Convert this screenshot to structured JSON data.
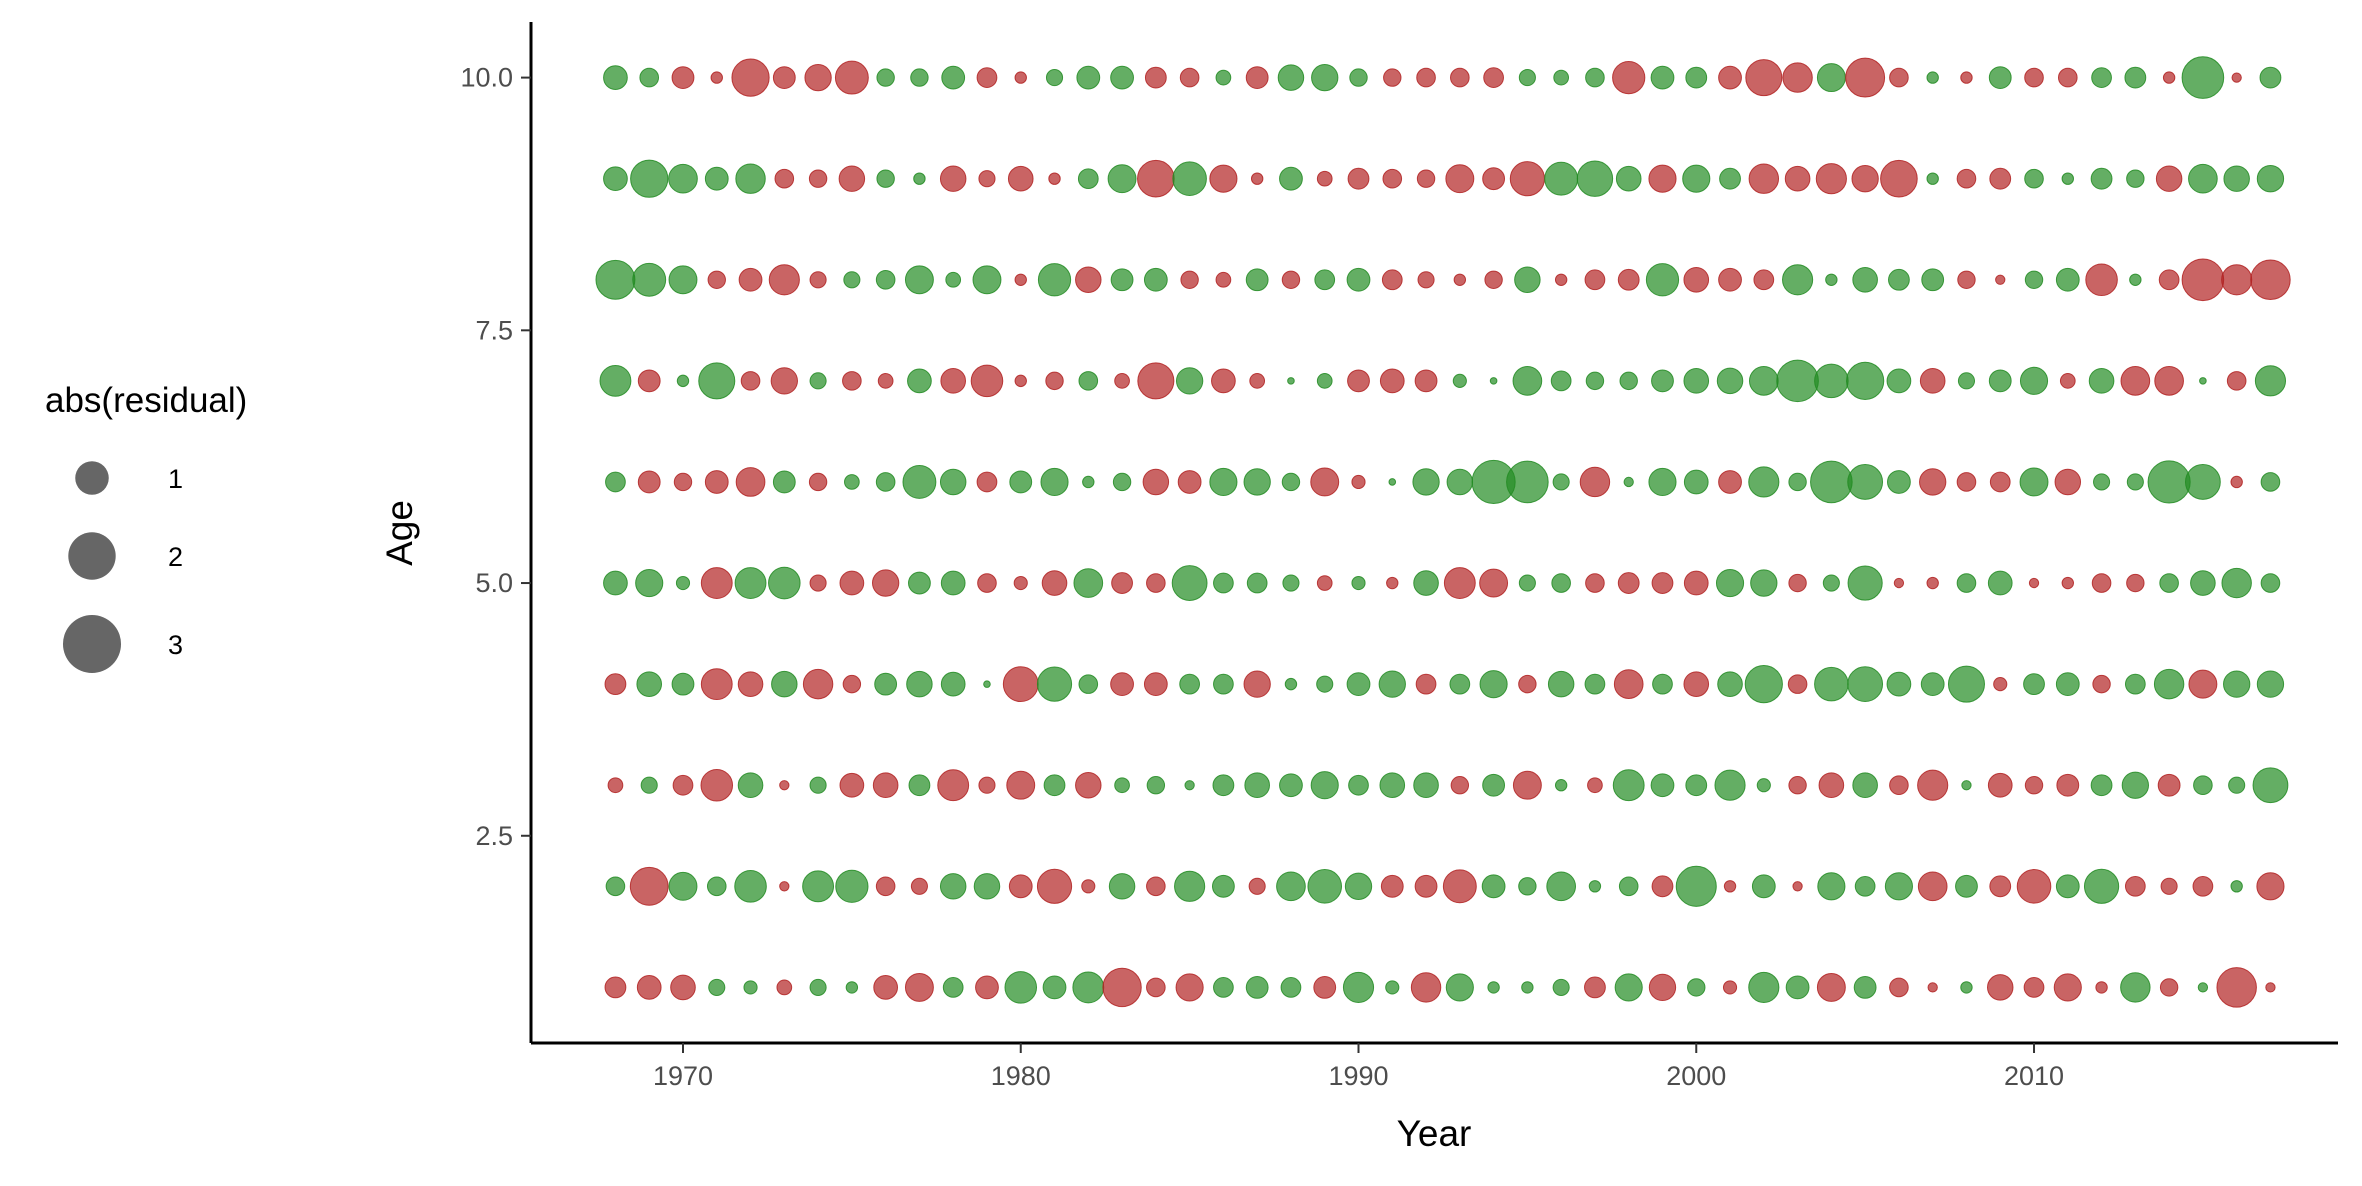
{
  "chart_data": {
    "type": "scatter",
    "subtype": "bubble",
    "xlabel": "Year",
    "ylabel": "Age",
    "xlim": [
      1965.5,
      2019
    ],
    "ylim": [
      0.45,
      10.55
    ],
    "x_ticks": [
      1970,
      1980,
      1990,
      2000,
      2010
    ],
    "x_tick_labels": [
      "1970",
      "1980",
      "1990",
      "2000",
      "2010"
    ],
    "y_ticks": [
      2.5,
      5.0,
      7.5,
      10.0
    ],
    "y_tick_labels": [
      "2.5",
      "5.0",
      "7.5",
      "10.0"
    ],
    "grid": false,
    "colors": {
      "positive": "#228B22",
      "negative": "#B22222",
      "opacity": 0.7
    },
    "size_legend": {
      "title": "abs(residual)",
      "position": "left",
      "values": [
        1,
        2,
        3
      ],
      "labels": [
        "1",
        "2",
        "3"
      ]
    },
    "years": [
      1968,
      1969,
      1970,
      1971,
      1972,
      1973,
      1974,
      1975,
      1976,
      1977,
      1978,
      1979,
      1980,
      1981,
      1982,
      1983,
      1984,
      1985,
      1986,
      1987,
      1988,
      1989,
      1990,
      1991,
      1992,
      1993,
      1994,
      1995,
      1996,
      1997,
      1998,
      1999,
      2000,
      2001,
      2002,
      2003,
      2004,
      2005,
      2006,
      2007,
      2008,
      2009,
      2010,
      2011,
      2012,
      2013,
      2014,
      2015,
      2016,
      2017
    ],
    "series": [
      {
        "age": 10,
        "residuals": [
          1.3,
          0.8,
          -1.1,
          -0.3,
          -3.2,
          -1.1,
          -1.6,
          -2.5,
          0.7,
          0.7,
          1.2,
          -0.9,
          -0.3,
          0.6,
          1.2,
          1.2,
          -1.0,
          -0.8,
          0.5,
          -1.1,
          1.5,
          1.6,
          0.7,
          -0.7,
          -0.8,
          -0.8,
          -0.9,
          0.6,
          0.5,
          0.8,
          -2.4,
          1.2,
          1.0,
          -1.2,
          -3.0,
          -2.0,
          1.8,
          -3.5,
          -0.8,
          0.3,
          -0.3,
          1.1,
          -0.8,
          -0.8,
          0.9,
          1.0,
          -0.3,
          4.0,
          -0.2,
          1.0
        ]
      },
      {
        "age": 9,
        "residuals": [
          1.3,
          3.2,
          1.9,
          1.2,
          2.0,
          -0.8,
          -0.7,
          -1.5,
          0.7,
          0.3,
          -1.5,
          -0.6,
          -1.4,
          -0.3,
          0.9,
          1.8,
          -3.1,
          2.6,
          -1.7,
          -0.3,
          1.2,
          -0.5,
          -1.0,
          -0.8,
          -0.7,
          -1.8,
          -1.1,
          -2.7,
          2.5,
          2.9,
          1.4,
          -1.7,
          1.7,
          1.0,
          -2.0,
          -1.4,
          -2.1,
          -1.6,
          -3.1,
          0.3,
          -0.8,
          -1.0,
          0.8,
          0.3,
          1.0,
          0.7,
          -1.5,
          1.9,
          1.5,
          1.6
        ]
      },
      {
        "age": 8,
        "residuals": [
          3.5,
          2.5,
          1.8,
          -0.7,
          -1.2,
          -2.1,
          -0.6,
          0.6,
          0.8,
          1.8,
          0.5,
          1.8,
          -0.3,
          2.4,
          -1.5,
          1.1,
          1.2,
          -0.7,
          -0.5,
          1.1,
          -0.7,
          0.9,
          1.2,
          -0.9,
          -0.6,
          -0.3,
          -0.7,
          1.5,
          -0.3,
          -0.9,
          -1.0,
          2.4,
          -1.4,
          -1.2,
          -0.9,
          2.1,
          0.3,
          1.4,
          1.0,
          1.1,
          -0.7,
          -0.2,
          0.7,
          1.2,
          -2.3,
          0.3,
          -0.9,
          -4.0,
          -2.1,
          -3.6
        ]
      },
      {
        "age": 7,
        "residuals": [
          2.2,
          -1.1,
          0.3,
          3.0,
          -0.8,
          -1.6,
          0.6,
          -0.8,
          -0.5,
          1.3,
          -1.4,
          -2.3,
          -0.3,
          -0.7,
          0.8,
          -0.5,
          -3.0,
          1.6,
          -1.3,
          -0.5,
          0.1,
          0.5,
          -1.1,
          -1.3,
          -1.1,
          0.4,
          0.1,
          1.9,
          0.9,
          0.7,
          0.7,
          1.1,
          1.4,
          1.5,
          1.9,
          4.0,
          2.6,
          3.2,
          1.3,
          -1.4,
          0.6,
          1.1,
          1.7,
          -0.5,
          1.4,
          -1.9,
          -1.9,
          0.1,
          -0.8,
          2.1
        ]
      },
      {
        "age": 6,
        "residuals": [
          0.9,
          -1.1,
          -0.7,
          -1.2,
          -1.9,
          1.1,
          -0.7,
          0.5,
          0.8,
          2.5,
          1.5,
          -0.9,
          1.1,
          1.7,
          0.3,
          0.7,
          -1.5,
          -1.2,
          1.7,
          1.6,
          0.7,
          -1.8,
          -0.4,
          0.1,
          1.6,
          1.5,
          4.3,
          4.0,
          0.6,
          -2.0,
          0.2,
          1.7,
          1.3,
          -1.2,
          2.1,
          0.7,
          4.0,
          2.8,
          1.2,
          -1.6,
          -0.8,
          -0.9,
          1.8,
          -1.5,
          0.6,
          0.6,
          4.1,
          2.8,
          -0.3,
          0.8
        ]
      },
      {
        "age": 5,
        "residuals": [
          1.3,
          1.7,
          0.4,
          -2.2,
          2.2,
          2.3,
          -0.6,
          -1.3,
          -1.6,
          1.1,
          1.3,
          -0.8,
          -0.4,
          -1.4,
          1.9,
          -1.0,
          -0.8,
          2.8,
          0.9,
          0.9,
          0.6,
          -0.5,
          0.4,
          -0.3,
          1.4,
          -2.2,
          -1.8,
          0.6,
          0.8,
          -0.8,
          -1.0,
          -1.0,
          -1.3,
          1.7,
          1.6,
          -0.7,
          0.6,
          2.7,
          -0.2,
          -0.3,
          0.8,
          1.3,
          -0.2,
          -0.3,
          -0.8,
          -0.7,
          0.8,
          1.4,
          2.0,
          0.8
        ]
      },
      {
        "age": 4,
        "residuals": [
          -1.0,
          1.4,
          1.1,
          -2.2,
          -1.4,
          1.5,
          -2.0,
          -0.7,
          1.1,
          1.5,
          1.3,
          0.1,
          -2.8,
          2.7,
          0.8,
          -1.2,
          -1.2,
          0.9,
          0.9,
          -1.6,
          0.3,
          0.6,
          1.2,
          1.6,
          -0.9,
          0.9,
          1.7,
          -0.7,
          1.5,
          0.9,
          -1.9,
          0.9,
          -1.4,
          1.4,
          3.2,
          -0.8,
          2.6,
          2.8,
          1.3,
          1.2,
          3.0,
          -0.4,
          1.0,
          1.2,
          -0.7,
          0.9,
          2.0,
          -1.8,
          1.6,
          1.6
        ]
      },
      {
        "age": 3,
        "residuals": [
          -0.5,
          0.6,
          -0.9,
          -2.3,
          1.4,
          -0.2,
          0.6,
          -1.3,
          -1.4,
          1.0,
          -2.2,
          -0.6,
          -1.8,
          1.0,
          -1.5,
          0.5,
          0.7,
          0.2,
          1.0,
          1.4,
          1.2,
          1.7,
          0.9,
          1.4,
          1.4,
          -0.7,
          1.1,
          -1.8,
          0.3,
          -0.5,
          2.2,
          1.2,
          1.0,
          2.1,
          0.4,
          -0.7,
          -1.4,
          1.4,
          -0.8,
          -2.1,
          0.2,
          -1.3,
          -0.7,
          -1.1,
          1.0,
          1.6,
          -1.1,
          0.8,
          0.6,
          2.8
        ]
      },
      {
        "age": 2,
        "residuals": [
          0.8,
          -3.3,
          1.8,
          0.8,
          2.3,
          -0.2,
          2.2,
          2.4,
          -0.8,
          -0.6,
          1.5,
          1.5,
          -1.2,
          -2.7,
          -0.4,
          1.5,
          -0.8,
          2.1,
          1.1,
          -0.6,
          1.9,
          2.6,
          1.6,
          -1.1,
          -1.1,
          -2.5,
          1.2,
          0.7,
          1.9,
          0.3,
          0.8,
          -1.0,
          3.7,
          -0.3,
          1.2,
          -0.2,
          1.7,
          0.9,
          1.7,
          -1.9,
          1.1,
          -1.0,
          -2.6,
          1.2,
          2.7,
          -0.9,
          -0.6,
          -0.9,
          0.3,
          -1.7
        ]
      },
      {
        "age": 1,
        "residuals": [
          -1.0,
          -1.3,
          -1.4,
          0.6,
          0.4,
          -0.5,
          0.6,
          0.3,
          -1.3,
          -1.8,
          0.9,
          -1.2,
          2.3,
          1.2,
          2.2,
          -3.4,
          -0.8,
          -1.7,
          0.9,
          1.1,
          0.9,
          -1.1,
          2.1,
          0.4,
          -2.0,
          1.7,
          0.3,
          0.3,
          0.6,
          -1.0,
          1.7,
          -1.6,
          0.7,
          -0.4,
          2.1,
          1.2,
          -1.8,
          1.1,
          -0.8,
          -0.2,
          0.3,
          -1.5,
          -0.9,
          -1.7,
          -0.3,
          2.0,
          -0.7,
          0.2,
          -3.6,
          -0.2
        ]
      }
    ]
  }
}
